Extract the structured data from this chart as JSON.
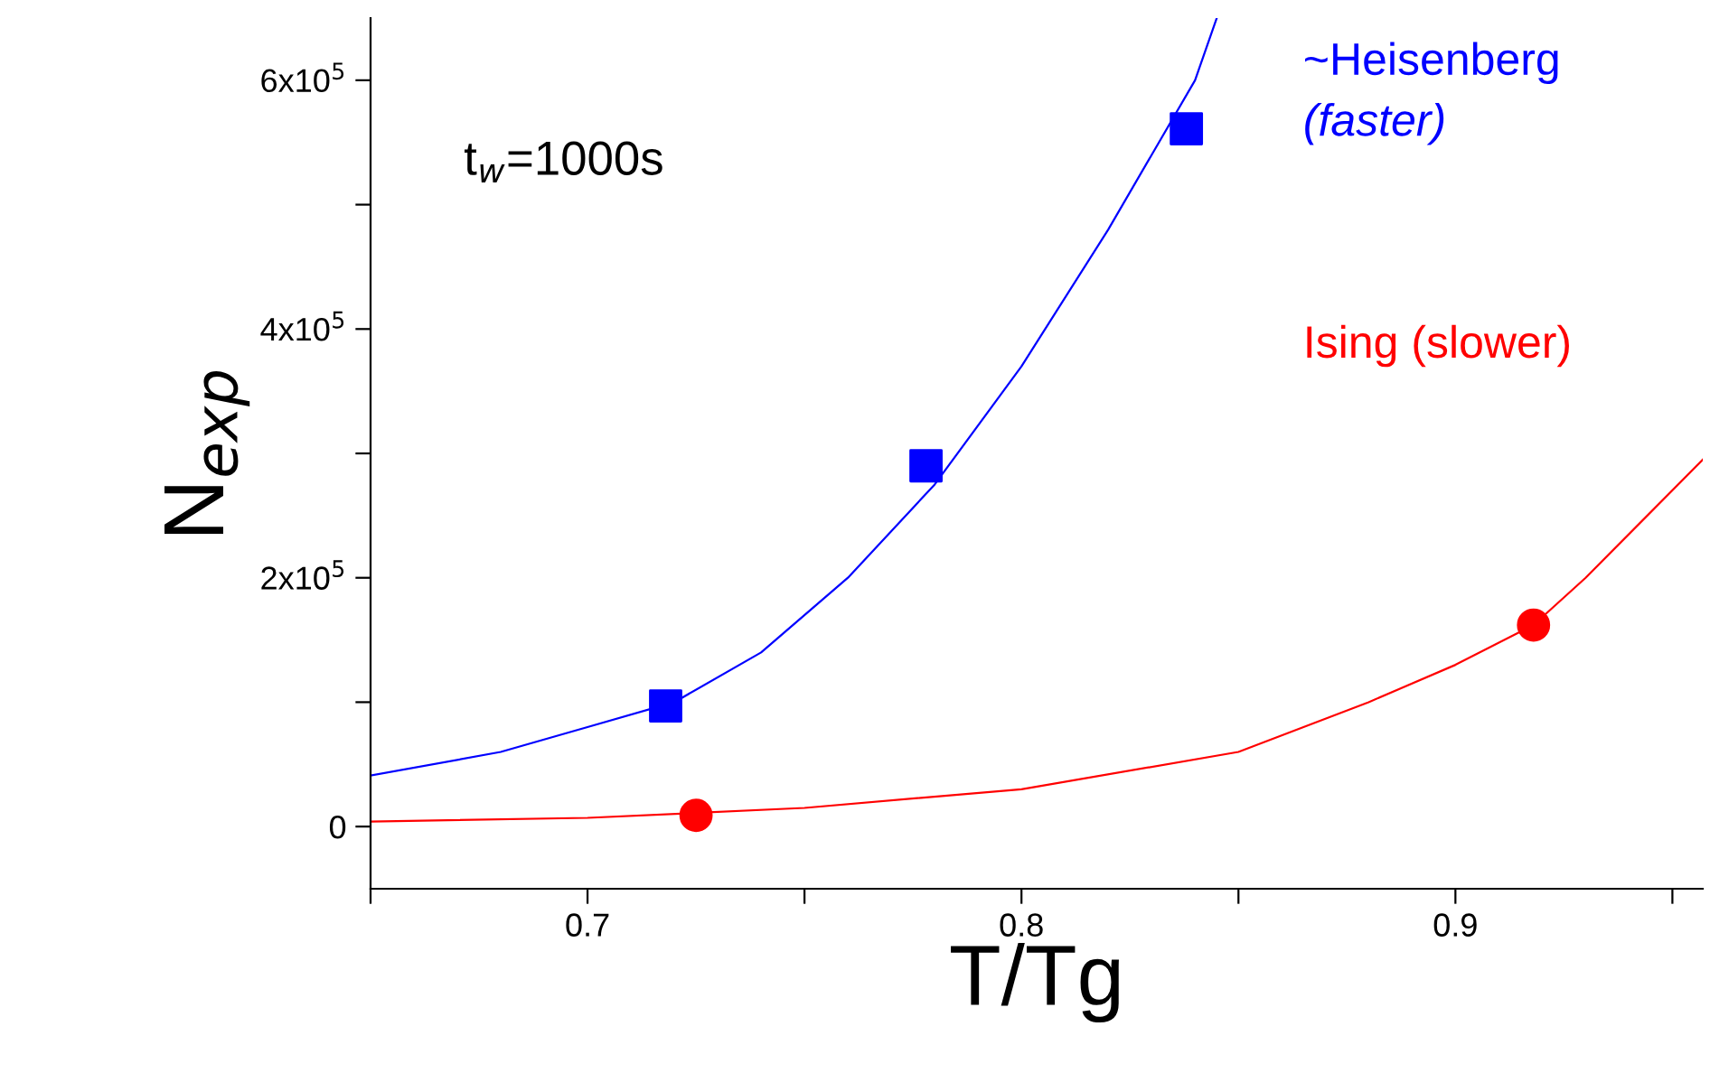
{
  "chart_data": {
    "type": "scatter",
    "xlabel": "T/Tg",
    "ylabel": "N$_{exp}$",
    "xlim": [
      0.65,
      0.957
    ],
    "ylim": [
      -50000,
      650000
    ],
    "xticks": [
      {
        "value": 0.65,
        "label": null
      },
      0.7,
      {
        "value": 0.75,
        "label": null
      },
      0.8,
      {
        "value": 0.85,
        "label": null
      },
      0.9,
      {
        "value": 0.95,
        "label": null
      }
    ],
    "yticks": [
      0,
      {
        "value": 100000,
        "label": null
      },
      {
        "value": 200000,
        "label": "2x10$^{5}$"
      },
      {
        "value": 300000,
        "label": null
      },
      {
        "value": 400000,
        "label": "4x10$^{5}$"
      },
      {
        "value": 500000,
        "label": null
      },
      {
        "value": 600000,
        "label": "6x10$^{5}$"
      }
    ],
    "grid": false,
    "legend": false,
    "series": [
      {
        "type": "line",
        "color": "#0000ff",
        "marker": "none",
        "x": [
          0.65,
          0.68,
          0.7,
          0.72,
          0.74,
          0.76,
          0.78,
          0.8,
          0.82,
          0.83,
          0.84,
          0.845
        ],
        "values": [
          41000,
          60000,
          80000,
          100000,
          140000,
          200000,
          275000,
          370000,
          480000,
          540000,
          600000,
          650000
        ]
      },
      {
        "type": "line",
        "color": "#ff0000",
        "marker": "none",
        "x": [
          0.65,
          0.7,
          0.75,
          0.8,
          0.85,
          0.88,
          0.9,
          0.918,
          0.93,
          0.957
        ],
        "values": [
          4000,
          7000,
          15000,
          30000,
          60000,
          100000,
          130000,
          162000,
          200000,
          295000
        ]
      },
      {
        "name": "~Heisenberg",
        "color": "#0000ff",
        "marker": "square",
        "x": [
          0.718,
          0.778,
          0.838
        ],
        "values": [
          97000,
          290000,
          561000
        ]
      },
      {
        "name": "Ising (slower)",
        "color": "#ff0000",
        "marker": "circle",
        "x": [
          0.725,
          0.918
        ],
        "values": [
          9000,
          162000
        ]
      }
    ],
    "annotations": [
      "t$_{w}$=1000s",
      "(faster)"
    ]
  }
}
